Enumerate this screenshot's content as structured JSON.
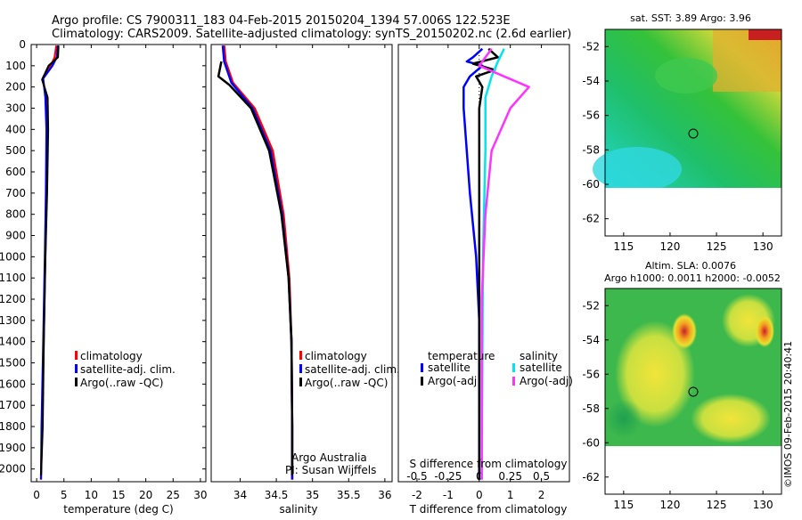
{
  "header": {
    "line1": "Argo profile: CS 7900311_183 04-Feb-2015 20150204_1394 57.006S 122.523E",
    "line2": "Climatology: CARS2009. Satellite-adjusted climatology: synTS_20150202.nc (2.6d earlier)"
  },
  "footer": {
    "stamp": "©IMOS 09-Feb-2015 20:40:41"
  },
  "colors": {
    "climatology": "#ff0000",
    "satellite": "#0000ff",
    "argo": "#000000",
    "sal_satellite": "#00e5ee",
    "sal_argo": "#ff33ff"
  },
  "chart_data": [
    {
      "type": "line",
      "id": "temperature",
      "xlabel": "temperature (deg C)",
      "ylabel": "",
      "xlim": [
        -1,
        31
      ],
      "ylim": [
        2060,
        0
      ],
      "xticks": [
        0,
        5,
        10,
        15,
        20,
        25,
        30
      ],
      "yticks": [
        0,
        100,
        200,
        300,
        400,
        500,
        600,
        700,
        800,
        900,
        1000,
        1100,
        1200,
        1300,
        1400,
        1500,
        1600,
        1700,
        1800,
        1900,
        2000
      ],
      "legend": [
        "climatology",
        "satellite-adj. clim.",
        "Argo(..raw -QC)"
      ],
      "series": [
        {
          "name": "climatology",
          "color": "#ff0000",
          "points": [
            [
              3.6,
              5
            ],
            [
              3.3,
              60
            ],
            [
              2.6,
              100
            ],
            [
              1.1,
              160
            ],
            [
              1.7,
              250
            ],
            [
              1.9,
              400
            ],
            [
              1.8,
              700
            ],
            [
              1.6,
              1000
            ],
            [
              1.3,
              1400
            ],
            [
              1.0,
              1800
            ],
            [
              0.8,
              2050
            ]
          ]
        },
        {
          "name": "satellite-adj. clim.",
          "color": "#0000ff",
          "points": [
            [
              3.9,
              5
            ],
            [
              3.7,
              60
            ],
            [
              2.9,
              100
            ],
            [
              1.2,
              160
            ],
            [
              1.6,
              250
            ],
            [
              1.8,
              400
            ],
            [
              1.7,
              700
            ],
            [
              1.5,
              1000
            ],
            [
              1.2,
              1400
            ],
            [
              0.9,
              1800
            ],
            [
              0.8,
              2050
            ]
          ]
        },
        {
          "name": "Argo(..raw -QC)",
          "color": "#000000",
          "points": [
            [
              4.0,
              5
            ],
            [
              3.9,
              60
            ],
            [
              2.2,
              100
            ],
            [
              1.0,
              165
            ],
            [
              2.0,
              250
            ],
            [
              2.1,
              400
            ],
            [
              1.9,
              700
            ],
            [
              1.6,
              1000
            ],
            [
              1.3,
              1400
            ],
            [
              1.1,
              1800
            ],
            [
              0.8,
              2030
            ]
          ]
        }
      ]
    },
    {
      "type": "line",
      "id": "salinity",
      "xlabel": "salinity",
      "ylabel": "",
      "xlim": [
        33.6,
        36.1
      ],
      "ylim": [
        2060,
        0
      ],
      "xticks": [
        34,
        34.5,
        35,
        35.5,
        36
      ],
      "legend": [
        "climatology",
        "satellite-adj. clim.",
        "Argo(..raw -QC)"
      ],
      "annotation": [
        "Argo Australia",
        "PI: Susan Wijffels"
      ],
      "series": [
        {
          "name": "climatology",
          "color": "#ff0000",
          "points": [
            [
              33.78,
              5
            ],
            [
              33.8,
              80
            ],
            [
              33.9,
              180
            ],
            [
              34.2,
              300
            ],
            [
              34.45,
              500
            ],
            [
              34.6,
              800
            ],
            [
              34.68,
              1100
            ],
            [
              34.71,
              1400
            ],
            [
              34.72,
              1800
            ],
            [
              34.72,
              2050
            ]
          ]
        },
        {
          "name": "satellite-adj. clim.",
          "color": "#0000ff",
          "points": [
            [
              33.76,
              5
            ],
            [
              33.78,
              80
            ],
            [
              33.88,
              180
            ],
            [
              34.17,
              300
            ],
            [
              34.42,
              500
            ],
            [
              34.58,
              800
            ],
            [
              34.67,
              1100
            ],
            [
              34.71,
              1400
            ],
            [
              34.72,
              1800
            ],
            [
              34.72,
              2050
            ]
          ]
        },
        {
          "name": "Argo(..raw -QC)",
          "color": "#000000",
          "points": [
            [
              33.74,
              80
            ],
            [
              33.7,
              150
            ],
            [
              33.85,
              190
            ],
            [
              34.15,
              300
            ],
            [
              34.4,
              500
            ],
            [
              34.57,
              800
            ],
            [
              34.67,
              1100
            ],
            [
              34.71,
              1400
            ],
            [
              34.72,
              1800
            ],
            [
              34.72,
              2030
            ]
          ]
        }
      ]
    },
    {
      "type": "line",
      "id": "difference",
      "xlabel": "T difference from climatology",
      "xlabel2": "S difference from climatology",
      "xlim": [
        -2.6,
        2.9
      ],
      "ylim": [
        2060,
        0
      ],
      "xticks_T": [
        -2,
        -1,
        0,
        1,
        2
      ],
      "xticks_S": [
        -0.5,
        -0.25,
        0,
        0.25,
        0.5
      ],
      "legend_T": [
        "temperature",
        "satellite",
        "Argo(-adj)"
      ],
      "legend_S": [
        "salinity",
        "satellite",
        "Argo(-adj)"
      ],
      "series": [
        {
          "name": "T satellite",
          "color": "#0000ff",
          "points": [
            [
              0.1,
              20
            ],
            [
              -0.2,
              60
            ],
            [
              -0.4,
              80
            ],
            [
              0.1,
              100
            ],
            [
              -0.3,
              150
            ],
            [
              -0.5,
              200
            ],
            [
              -0.5,
              300
            ],
            [
              -0.4,
              500
            ],
            [
              -0.3,
              700
            ],
            [
              -0.1,
              1000
            ],
            [
              0,
              1300
            ],
            [
              0,
              2050
            ]
          ]
        },
        {
          "name": "T Argo(-adj)",
          "color": "#000000",
          "points": [
            [
              0.3,
              20
            ],
            [
              0.6,
              60
            ],
            [
              -0.2,
              90
            ],
            [
              0.5,
              120
            ],
            [
              -0.1,
              150
            ],
            [
              0.1,
              200
            ],
            [
              0.0,
              300
            ],
            [
              0.0,
              500
            ],
            [
              0.0,
              700
            ],
            [
              0.0,
              1000
            ],
            [
              0,
              1300
            ],
            [
              0,
              2050
            ]
          ]
        },
        {
          "name": "S satellite",
          "color": "#00e5ee",
          "points": [
            [
              0.2,
              20
            ],
            [
              0.15,
              80
            ],
            [
              0.1,
              150
            ],
            [
              0.05,
              250
            ],
            [
              0.05,
              500
            ],
            [
              0.03,
              1000
            ],
            [
              0.02,
              2050
            ]
          ]
        },
        {
          "name": "S Argo(-adj)",
          "color": "#ff33ff",
          "points": [
            [
              0.1,
              20
            ],
            [
              0.0,
              100
            ],
            [
              0.2,
              150
            ],
            [
              0.4,
              200
            ],
            [
              0.25,
              300
            ],
            [
              0.1,
              500
            ],
            [
              0.05,
              800
            ],
            [
              0.02,
              1200
            ],
            [
              0.02,
              2050
            ]
          ]
        }
      ]
    }
  ],
  "maps": [
    {
      "id": "sst",
      "title": "sat. SST: 3.89  Argo: 3.96",
      "xticks": [
        "115",
        "120",
        "125",
        "130"
      ],
      "yticks": [
        "-52",
        "-54",
        "-56",
        "-58",
        "-60",
        "-62"
      ],
      "marker_lon": 122.5,
      "marker_lat": -57.0
    },
    {
      "id": "sla",
      "title_line1": "Altim. SLA: 0.0076",
      "title_line2": "Argo h1000: 0.0011 h2000: -0.0052",
      "xticks": [
        "115",
        "120",
        "125",
        "130"
      ],
      "yticks": [
        "-52",
        "-54",
        "-56",
        "-58",
        "-60",
        "-62"
      ],
      "marker_lon": 122.5,
      "marker_lat": -57.0
    }
  ]
}
